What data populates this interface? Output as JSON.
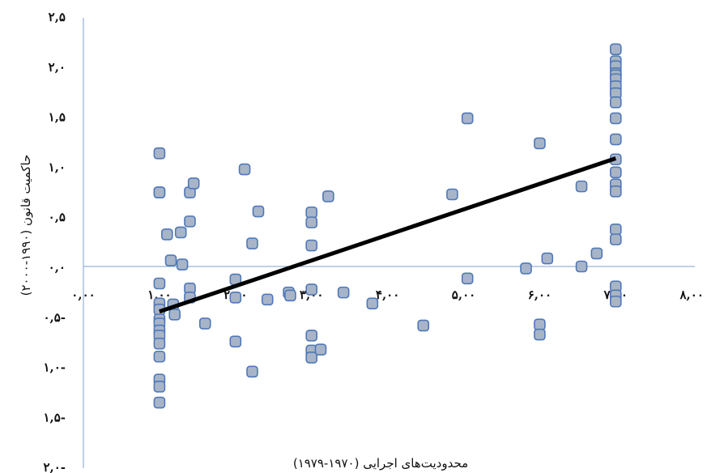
{
  "chart_data": {
    "type": "scatter",
    "xlabel": "محدودیت‌های اجرایی (۱۹۷۰-۱۹۷۹)",
    "ylabel": "حاکمیت قانون (۱۹۹۰-۲۰۰۰)",
    "xlim": [
      0,
      8
    ],
    "ylim": [
      -2,
      2.5
    ],
    "grid": false,
    "legend": "none",
    "x_ticks": [
      {
        "value": 0,
        "label": "۰,۰۰"
      },
      {
        "value": 1,
        "label": "۱,۰۰"
      },
      {
        "value": 2,
        "label": "۲,۰۰"
      },
      {
        "value": 3,
        "label": "۳,۰۰"
      },
      {
        "value": 4,
        "label": "۴,۰۰"
      },
      {
        "value": 5,
        "label": "۵,۰۰"
      },
      {
        "value": 6,
        "label": "۶,۰۰"
      },
      {
        "value": 7,
        "label": "۷,۰۰"
      },
      {
        "value": 8,
        "label": "۸,۰۰"
      }
    ],
    "y_ticks": [
      {
        "value": 2.5,
        "label": "۲,۵"
      },
      {
        "value": 2.0,
        "label": "۲,۰"
      },
      {
        "value": 1.5,
        "label": "۱,۵"
      },
      {
        "value": 1.0,
        "label": "۱,۰"
      },
      {
        "value": 0.5,
        "label": "۰,۵"
      },
      {
        "value": 0.0,
        "label": "۰,۰"
      },
      {
        "value": -0.5,
        "label": "۰,۵-"
      },
      {
        "value": -1.0,
        "label": "۱,۰-"
      },
      {
        "value": -1.5,
        "label": "۱,۵-"
      },
      {
        "value": -2.0,
        "label": "۲,۰-"
      }
    ],
    "trendline": {
      "x": [
        1,
        7
      ],
      "y": [
        -0.45,
        1.08
      ]
    },
    "colors": {
      "marker_fill": "#a8b4c8",
      "marker_edge": "#4f78b8",
      "axis": "#7f9fd0",
      "trend": "#000000"
    },
    "points": [
      [
        1.0,
        1.13
      ],
      [
        1.0,
        0.74
      ],
      [
        1.0,
        0.74
      ],
      [
        1.0,
        -0.17
      ],
      [
        1.0,
        -0.37
      ],
      [
        1.0,
        -0.43
      ],
      [
        1.0,
        -0.53
      ],
      [
        1.0,
        -0.57
      ],
      [
        1.0,
        -0.64
      ],
      [
        1.0,
        -0.69
      ],
      [
        1.0,
        -0.77
      ],
      [
        1.0,
        -0.9
      ],
      [
        1.0,
        -1.13
      ],
      [
        1.0,
        -1.2
      ],
      [
        1.0,
        -1.36
      ],
      [
        1.1,
        0.32
      ],
      [
        1.15,
        0.06
      ],
      [
        1.18,
        -0.38
      ],
      [
        1.2,
        -0.48
      ],
      [
        1.28,
        0.34
      ],
      [
        1.3,
        0.02
      ],
      [
        1.4,
        0.74
      ],
      [
        1.4,
        0.45
      ],
      [
        1.4,
        -0.22
      ],
      [
        1.4,
        -0.31
      ],
      [
        1.45,
        0.83
      ],
      [
        1.6,
        -0.57
      ],
      [
        2.0,
        -0.13
      ],
      [
        2.0,
        -0.31
      ],
      [
        2.0,
        -0.75
      ],
      [
        2.12,
        0.97
      ],
      [
        2.22,
        0.23
      ],
      [
        2.22,
        -1.05
      ],
      [
        2.3,
        0.55
      ],
      [
        2.42,
        -0.33
      ],
      [
        2.7,
        -0.26
      ],
      [
        2.72,
        -0.29
      ],
      [
        3.0,
        0.54
      ],
      [
        3.0,
        0.44
      ],
      [
        3.0,
        0.21
      ],
      [
        3.0,
        -0.23
      ],
      [
        3.0,
        -0.69
      ],
      [
        3.0,
        -0.84
      ],
      [
        3.0,
        -0.91
      ],
      [
        3.12,
        -0.83
      ],
      [
        3.22,
        0.7
      ],
      [
        3.42,
        -0.26
      ],
      [
        3.8,
        -0.37
      ],
      [
        4.47,
        -0.59
      ],
      [
        4.85,
        0.72
      ],
      [
        5.05,
        1.48
      ],
      [
        5.05,
        -0.12
      ],
      [
        5.82,
        -0.02
      ],
      [
        6.0,
        1.23
      ],
      [
        6.0,
        -0.58
      ],
      [
        6.0,
        -0.68
      ],
      [
        6.1,
        0.08
      ],
      [
        6.55,
        0.8
      ],
      [
        6.55,
        0.0
      ],
      [
        6.75,
        0.13
      ],
      [
        7.0,
        2.17
      ],
      [
        7.0,
        2.05
      ],
      [
        7.0,
        2.0
      ],
      [
        7.0,
        1.93
      ],
      [
        7.0,
        1.91
      ],
      [
        7.0,
        1.87
      ],
      [
        7.0,
        1.8
      ],
      [
        7.0,
        1.73
      ],
      [
        7.0,
        1.64
      ],
      [
        7.0,
        1.48
      ],
      [
        7.0,
        1.27
      ],
      [
        7.0,
        1.07
      ],
      [
        7.0,
        0.94
      ],
      [
        7.0,
        0.82
      ],
      [
        7.0,
        0.75
      ],
      [
        7.0,
        0.37
      ],
      [
        7.0,
        0.27
      ],
      [
        7.0,
        -0.2
      ],
      [
        7.0,
        -0.29
      ],
      [
        7.0,
        -0.35
      ]
    ]
  }
}
